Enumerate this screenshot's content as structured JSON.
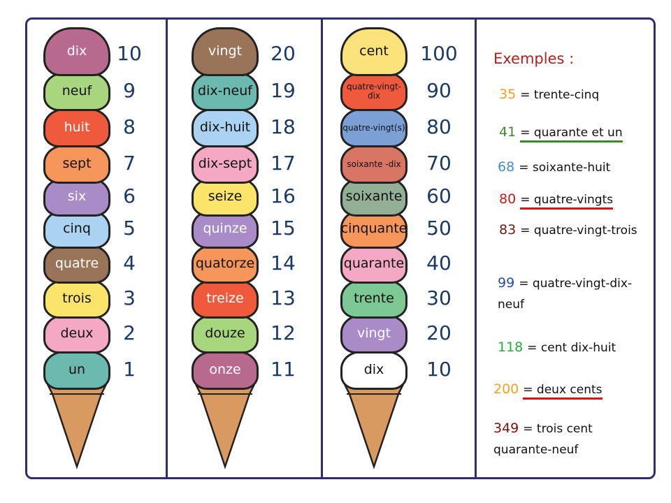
{
  "columns": [
    {
      "scoops": [
        {
          "label": "dix",
          "number": "10",
          "color": "#b86a8e",
          "text": "#fff"
        },
        {
          "label": "neuf",
          "number": "9",
          "color": "#a8d67f",
          "text": "#111"
        },
        {
          "label": "huit",
          "number": "8",
          "color": "#f05a3c",
          "text": "#fff"
        },
        {
          "label": "sept",
          "number": "7",
          "color": "#f7965a",
          "text": "#111"
        },
        {
          "label": "six",
          "number": "6",
          "color": "#a98bc7",
          "text": "#fff"
        },
        {
          "label": "cinq",
          "number": "5",
          "color": "#a9d3f0",
          "text": "#111"
        },
        {
          "label": "quatre",
          "number": "4",
          "color": "#9a7458",
          "text": "#fff"
        },
        {
          "label": "trois",
          "number": "3",
          "color": "#fbe46a",
          "text": "#111"
        },
        {
          "label": "deux",
          "number": "2",
          "color": "#f4a8c3",
          "text": "#111"
        },
        {
          "label": "un",
          "number": "1",
          "color": "#6cb9b0",
          "text": "#111"
        }
      ]
    },
    {
      "scoops": [
        {
          "label": "vingt",
          "number": "20",
          "color": "#9a7458",
          "text": "#fff"
        },
        {
          "label": "dix-neuf",
          "number": "19",
          "color": "#6cb9b0",
          "text": "#111"
        },
        {
          "label": "dix-huit",
          "number": "18",
          "color": "#a9d3f0",
          "text": "#111"
        },
        {
          "label": "dix-sept",
          "number": "17",
          "color": "#f4a8c3",
          "text": "#111"
        },
        {
          "label": "seize",
          "number": "16",
          "color": "#fbe46a",
          "text": "#111"
        },
        {
          "label": "quinze",
          "number": "15",
          "color": "#a98bc7",
          "text": "#fff"
        },
        {
          "label": "quatorze",
          "number": "14",
          "color": "#f7965a",
          "text": "#111"
        },
        {
          "label": "treize",
          "number": "13",
          "color": "#f05a3c",
          "text": "#fff"
        },
        {
          "label": "douze",
          "number": "12",
          "color": "#a8d67f",
          "text": "#111"
        },
        {
          "label": "onze",
          "number": "11",
          "color": "#b86a8e",
          "text": "#fff"
        }
      ]
    },
    {
      "scoops": [
        {
          "label": "cent",
          "number": "100",
          "color": "#fbe27a",
          "text": "#111"
        },
        {
          "label": "quatre-vingt-dix",
          "number": "90",
          "color": "#ef5a3c",
          "text": "#111",
          "small": true
        },
        {
          "label": "quatre-vingt(s)",
          "number": "80",
          "color": "#7ba0d6",
          "text": "#111",
          "small": true
        },
        {
          "label": "soixante -dix",
          "number": "70",
          "color": "#d97564",
          "text": "#111",
          "small": true
        },
        {
          "label": "soixante",
          "number": "60",
          "color": "#93b096",
          "text": "#111"
        },
        {
          "label": "cinquante",
          "number": "50",
          "color": "#f7965a",
          "text": "#111"
        },
        {
          "label": "quarante",
          "number": "40",
          "color": "#f4a8c3",
          "text": "#111"
        },
        {
          "label": "trente",
          "number": "30",
          "color": "#7cc995",
          "text": "#111"
        },
        {
          "label": "vingt",
          "number": "20",
          "color": "#a98bc7",
          "text": "#fff"
        },
        {
          "label": "dix",
          "number": "10",
          "color": "#ffffff",
          "text": "#111"
        }
      ]
    }
  ],
  "examples": {
    "title": "Exemples :",
    "items": [
      {
        "number": "35",
        "color": "#f5a020",
        "text": "= trente-cinq"
      },
      {
        "number": "41",
        "color": "#3a8a2a",
        "text": "= quarante et un",
        "underline": "et",
        "ulcolor": "#3a8a2a"
      },
      {
        "number": "68",
        "color": "#4a8ad0",
        "text": "= soixante-huit"
      },
      {
        "number": "80",
        "color": "#d01818",
        "text": "= quatre-vingts",
        "underline": "s",
        "ulcolor": "#d01818"
      },
      {
        "number": "83",
        "color": "#6a1a10",
        "text": "= quatre-vingt-trois"
      },
      {
        "number": "99",
        "color": "#2a4a9a",
        "text": "= quatre-vingt-dix-neuf"
      },
      {
        "number": "118",
        "color": "#2aaa3a",
        "text": "= cent dix-huit"
      },
      {
        "number": "200",
        "color": "#f5a020",
        "text": "= deux cents",
        "underline": "s",
        "ulcolor": "#d01818"
      },
      {
        "number": "349",
        "color": "#7a1010",
        "text": "= trois cent quarante-neuf"
      }
    ]
  }
}
